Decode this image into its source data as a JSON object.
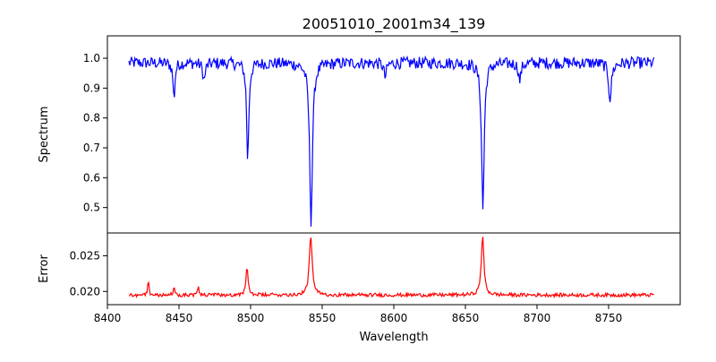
{
  "chart_data": {
    "type": "line",
    "title": "20051010_2001m34_139",
    "xlabel": "Wavelength",
    "x_range": [
      8415,
      8782
    ],
    "xlim": [
      8400,
      8800
    ],
    "xticks": [
      8400,
      8450,
      8500,
      8550,
      8600,
      8650,
      8700,
      8750
    ],
    "panels": [
      {
        "name": "spectrum",
        "ylabel": "Spectrum",
        "ylim": [
          0.415,
          1.075
        ],
        "yticks": [
          0.5,
          0.6,
          0.7,
          0.8,
          0.9,
          1.0
        ],
        "ytick_labels": [
          "0.5",
          "0.6",
          "0.7",
          "0.8",
          "0.9",
          "1.0"
        ],
        "color": "#0000ff",
        "baseline": 0.985,
        "noise": 0.02,
        "features": [
          {
            "center": 8446.5,
            "depth": 0.12,
            "width": 0.8
          },
          {
            "center": 8467.5,
            "depth": 0.06,
            "width": 1.0
          },
          {
            "center": 8498.0,
            "depth": 0.33,
            "width": 0.9
          },
          {
            "center": 8542.2,
            "depth": 0.53,
            "width": 1.2
          },
          {
            "center": 8594.0,
            "depth": 0.05,
            "width": 1.0
          },
          {
            "center": 8662.2,
            "depth": 0.49,
            "width": 1.1
          },
          {
            "center": 8688.0,
            "depth": 0.06,
            "width": 1.0
          },
          {
            "center": 8751.0,
            "depth": 0.12,
            "width": 1.2
          }
        ]
      },
      {
        "name": "error",
        "ylabel": "Error",
        "ylim": [
          0.01815,
          0.0282
        ],
        "yticks": [
          0.02,
          0.025
        ],
        "ytick_labels": [
          "0.020",
          "0.025"
        ],
        "color": "#ff0000",
        "baseline": 0.0195,
        "noise": 0.00025,
        "features": [
          {
            "center": 8428.5,
            "height": 0.0022,
            "width": 0.5
          },
          {
            "center": 8446.5,
            "height": 0.001,
            "width": 0.6
          },
          {
            "center": 8463.5,
            "height": 0.0013,
            "width": 0.5
          },
          {
            "center": 8497.5,
            "height": 0.0037,
            "width": 0.9
          },
          {
            "center": 8542.0,
            "height": 0.0083,
            "width": 1.2
          },
          {
            "center": 8662.0,
            "height": 0.0083,
            "width": 1.1
          }
        ]
      }
    ]
  }
}
